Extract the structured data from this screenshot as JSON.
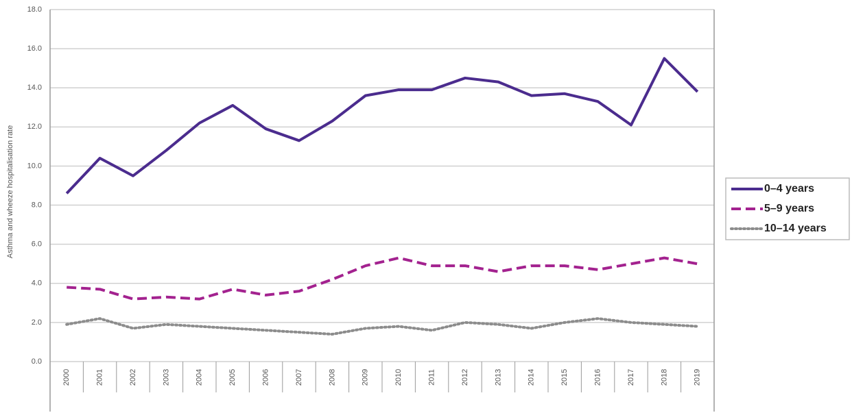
{
  "chart_data": {
    "type": "line",
    "y_label": "Asthma and wheeze hospitalisation rate",
    "categories": [
      "2000",
      "2001",
      "2002",
      "2003",
      "2004",
      "2005",
      "2006",
      "2007",
      "2008",
      "2009",
      "2010",
      "2011",
      "2012",
      "2013",
      "2014",
      "2015",
      "2016",
      "2017",
      "2018",
      "2019"
    ],
    "series": [
      {
        "name": "0–4 years",
        "color": "#4b2c8e",
        "style": "solid",
        "values": [
          8.6,
          10.4,
          9.5,
          10.8,
          12.2,
          13.1,
          11.9,
          11.3,
          12.3,
          13.6,
          13.9,
          13.9,
          14.5,
          14.3,
          13.6,
          13.7,
          13.3,
          12.1,
          15.5,
          13.8
        ]
      },
      {
        "name": "5–9 years",
        "color": "#a3228f",
        "style": "dashed",
        "values": [
          3.8,
          3.7,
          3.2,
          3.3,
          3.2,
          3.7,
          3.4,
          3.6,
          4.2,
          4.9,
          5.3,
          4.9,
          4.9,
          4.6,
          4.9,
          4.9,
          4.7,
          5.0,
          5.3,
          5.0
        ]
      },
      {
        "name": "10–14 years",
        "color": "#8c8c8c",
        "style": "dotted",
        "values": [
          1.9,
          2.2,
          1.7,
          1.9,
          1.8,
          1.7,
          1.6,
          1.5,
          1.4,
          1.7,
          1.8,
          1.6,
          2.0,
          1.9,
          1.7,
          2.0,
          2.2,
          2.0,
          1.9,
          1.8
        ]
      }
    ],
    "ylim": [
      0,
      18
    ],
    "yticks": [
      {
        "value": 0,
        "label": "0.0"
      },
      {
        "value": 2,
        "label": "2.0"
      },
      {
        "value": 4,
        "label": "4.0"
      },
      {
        "value": 6,
        "label": "6.0"
      },
      {
        "value": 8,
        "label": "8.0"
      },
      {
        "value": 10,
        "label": "10.0"
      },
      {
        "value": 12,
        "label": "12.0"
      },
      {
        "value": 14,
        "label": "14.0"
      },
      {
        "value": 16,
        "label": "16.0"
      },
      {
        "value": 18,
        "label": "18.0"
      }
    ],
    "grid": true,
    "legend": "right"
  }
}
